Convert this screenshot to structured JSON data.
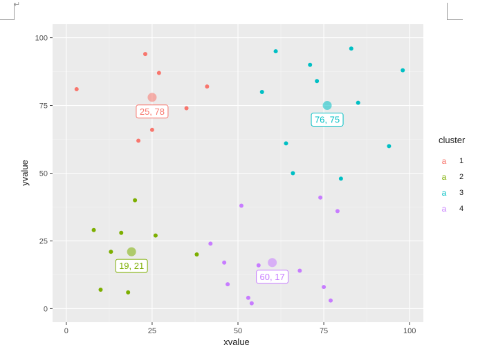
{
  "doc": {
    "return_mark": "↵"
  },
  "chart_data": {
    "type": "scatter",
    "title": "",
    "xlabel": "xvalue",
    "ylabel": "yvalue",
    "xlim": [
      -4,
      104
    ],
    "ylim": [
      -5,
      105
    ],
    "x_ticks": [
      0,
      25,
      50,
      75,
      100
    ],
    "y_ticks": [
      0,
      25,
      50,
      75,
      100
    ],
    "x_tick_labels": [
      "0",
      "25",
      "50",
      "75",
      "100"
    ],
    "y_tick_labels": [
      "0",
      "25",
      "50",
      "75",
      "100"
    ],
    "grid": true,
    "legend": {
      "title": "cluster",
      "position": "right",
      "key_glyph": "a"
    },
    "series": [
      {
        "name": "1",
        "color": "#F8766D",
        "points": [
          [
            3,
            81
          ],
          [
            23,
            94
          ],
          [
            27,
            87
          ],
          [
            41,
            82
          ],
          [
            35,
            74
          ],
          [
            25,
            66
          ],
          [
            21,
            62
          ]
        ],
        "center": [
          25,
          78
        ],
        "center_label": "25, 78"
      },
      {
        "name": "2",
        "color": "#7CAE00",
        "points": [
          [
            20,
            40
          ],
          [
            8,
            29
          ],
          [
            16,
            28
          ],
          [
            26,
            27
          ],
          [
            13,
            21
          ],
          [
            38,
            20
          ],
          [
            10,
            7
          ],
          [
            18,
            6
          ]
        ],
        "center": [
          19,
          21
        ],
        "center_label": "19, 21"
      },
      {
        "name": "3",
        "color": "#00BFC4",
        "points": [
          [
            83,
            96
          ],
          [
            61,
            95
          ],
          [
            71,
            90
          ],
          [
            98,
            88
          ],
          [
            73,
            84
          ],
          [
            57,
            80
          ],
          [
            85,
            76
          ],
          [
            64,
            61
          ],
          [
            94,
            60
          ],
          [
            66,
            50
          ],
          [
            80,
            48
          ]
        ],
        "center": [
          76,
          75
        ],
        "center_label": "76, 75"
      },
      {
        "name": "4",
        "color": "#C77CFF",
        "points": [
          [
            74,
            41
          ],
          [
            51,
            38
          ],
          [
            79,
            36
          ],
          [
            42,
            24
          ],
          [
            46,
            17
          ],
          [
            56,
            16
          ],
          [
            68,
            14
          ],
          [
            47,
            9
          ],
          [
            75,
            8
          ],
          [
            53,
            4
          ],
          [
            77,
            3
          ],
          [
            54,
            2
          ]
        ],
        "center": [
          60,
          17
        ],
        "center_label": "60, 17"
      }
    ]
  }
}
